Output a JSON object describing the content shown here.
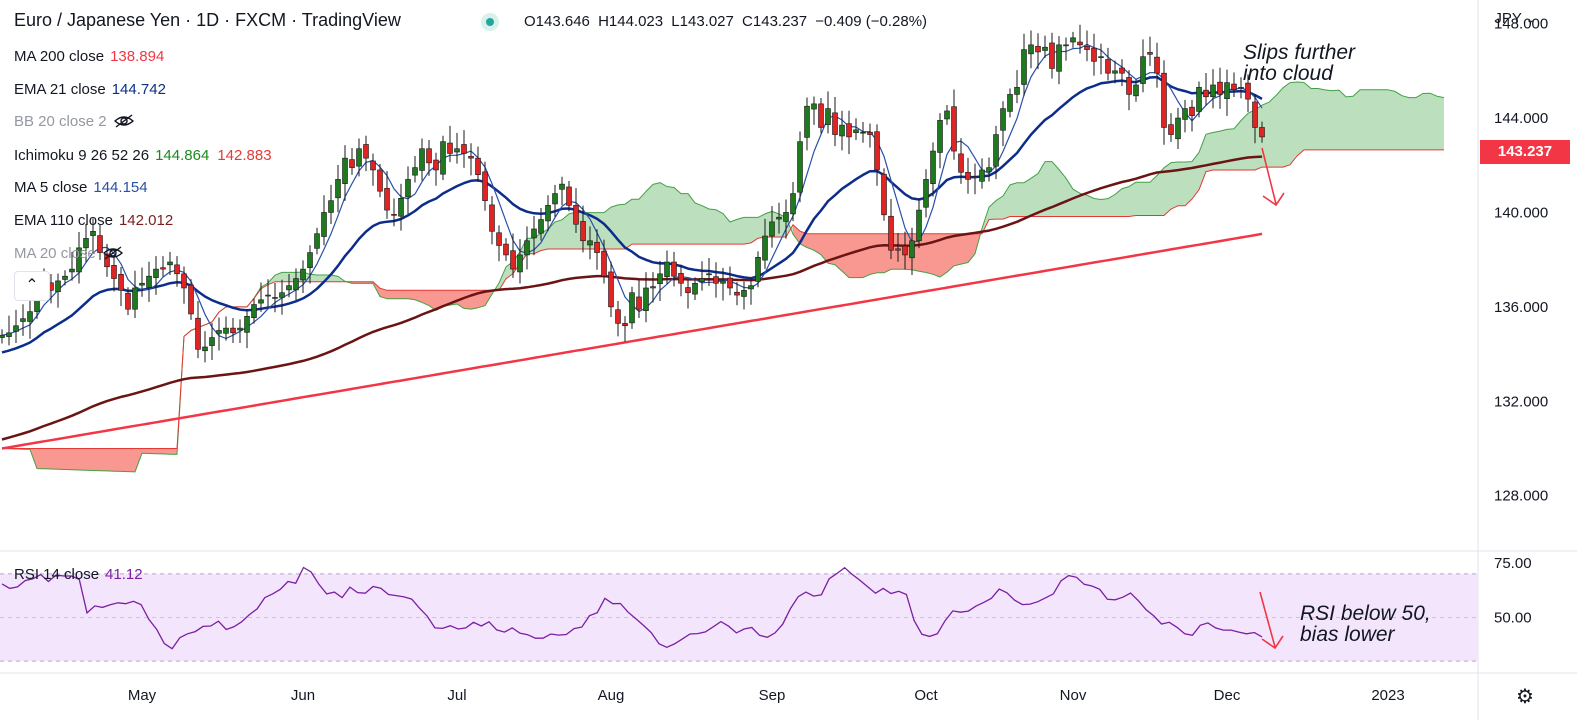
{
  "header": {
    "title": "Euro / Japanese Yen · 1D · FXCM · TradingView",
    "open": "O143.646",
    "high": "H144.023",
    "low": "L143.027",
    "close": "C143.237",
    "change": "−0.409 (−0.28%)"
  },
  "legend": [
    {
      "name": "MA 200 close",
      "value": "138.894",
      "color": "#f23645"
    },
    {
      "name": "EMA 21 close",
      "value": "144.742",
      "color": "#0d2d8a"
    },
    {
      "name": "BB 20 close 2",
      "value": "",
      "color": "#9598a1"
    },
    {
      "name": "Ichimoku 9 26 52 26",
      "value": "144.864",
      "value2": "142.883",
      "color": "#1b8a1b",
      "color2": "#e53935"
    },
    {
      "name": "MA 5 close",
      "value": "144.154",
      "color": "#2850a8"
    },
    {
      "name": "EMA 110 close",
      "value": "142.012",
      "color": "#7b1e1e"
    },
    {
      "name": "MA 20 close",
      "value": "",
      "color": "#9598a1"
    }
  ],
  "rsi_legend": {
    "name": "RSI 14 close",
    "value": "41.12",
    "color": "#7b1fa2"
  },
  "currency": "JPY",
  "last_price": "143.237",
  "annotations": {
    "top_line1": "Slips further",
    "top_line2": "into cloud",
    "rsi_line1": "RSI below 50,",
    "rsi_line2": "bias lower"
  },
  "colors": {
    "up": "#1f7a1f",
    "down": "#e02424",
    "cloud_green": "#a5d6a7",
    "cloud_red": "#f44336",
    "rsi": "#7b1fa2",
    "rsi_band": "#f3e5fc"
  },
  "chart_data": {
    "type": "candlestick",
    "symbol": "EURJPY",
    "price_axis": {
      "ticks": [
        "148.000",
        "144.000",
        "140.000",
        "136.000",
        "132.000",
        "128.000"
      ],
      "tick_values": [
        148,
        144,
        140,
        136,
        132,
        128
      ],
      "range": [
        125.7,
        149.0
      ]
    },
    "rsi_axis": {
      "ticks": [
        "75.00",
        "50.00"
      ],
      "tick_values": [
        75,
        50
      ],
      "range": [
        25,
        80
      ]
    },
    "x_labels": [
      "May",
      "Jun",
      "Jul",
      "Aug",
      "Sep",
      "Oct",
      "Nov",
      "Dec",
      "2023"
    ],
    "x_label_dates": [
      20,
      43,
      65,
      87,
      110,
      132,
      153,
      175,
      198
    ],
    "closes": [
      134.8,
      134.9,
      135.2,
      135.5,
      135.8,
      136.7,
      137.2,
      136.7,
      137.1,
      137.3,
      137.6,
      138.5,
      138.9,
      139.2,
      138.3,
      137.7,
      137.2,
      136.7,
      135.9,
      136.8,
      137.0,
      137.3,
      137.6,
      137.6,
      137.9,
      137.4,
      136.8,
      135.7,
      134.2,
      134.3,
      134.7,
      135.0,
      135.1,
      134.9,
      135.1,
      135.6,
      136.1,
      136.3,
      136.5,
      136.4,
      136.6,
      136.9,
      137.2,
      137.6,
      138.3,
      139.1,
      140.0,
      140.5,
      141.4,
      142.3,
      141.9,
      142.7,
      142.3,
      141.8,
      140.9,
      140.1,
      139.9,
      140.6,
      141.4,
      141.9,
      142.7,
      142.1,
      141.8,
      143.0,
      142.5,
      142.7,
      142.5,
      142.3,
      141.6,
      140.5,
      139.2,
      138.6,
      138.2,
      137.6,
      138.2,
      138.8,
      139.3,
      139.7,
      140.3,
      140.8,
      141.2,
      140.3,
      139.5,
      138.8,
      138.8,
      138.3,
      137.3,
      136.0,
      135.3,
      135.2,
      136.6,
      135.9,
      136.8,
      136.8,
      137.4,
      137.9,
      137.3,
      137.0,
      136.6,
      137.0,
      137.2,
      137.4,
      137.0,
      137.1,
      136.8,
      136.5,
      136.7,
      136.9,
      138.1,
      139.0,
      139.6,
      139.8,
      140.0,
      140.8,
      143.0,
      144.5,
      144.6,
      143.6,
      144.4,
      143.3,
      143.7,
      143.2,
      143.5,
      143.4,
      143.3,
      141.8,
      139.9,
      138.4,
      138.4,
      138.2,
      138.8,
      140.1,
      141.4,
      142.6,
      143.9,
      144.3,
      142.6,
      141.7,
      141.4,
      141.5,
      141.8,
      141.9,
      143.3,
      144.4,
      145.0,
      145.3,
      146.9,
      147.1,
      146.8,
      147.0,
      146.1,
      147.1,
      147.1,
      147.4,
      147.1,
      146.9,
      146.4,
      146.6,
      145.9,
      146.0,
      145.9,
      145.0,
      145.4,
      146.6,
      146.7,
      145.9,
      143.6,
      143.3,
      144.0,
      144.4,
      144.1,
      145.3,
      144.9,
      145.4,
      145.0,
      145.5,
      145.2,
      145.3,
      144.8,
      143.6,
      143.2
    ],
    "series_lines": [
      "MA 200",
      "EMA 110",
      "EMA 21",
      "MA 5",
      "Ichimoku Span A",
      "Ichimoku Span B"
    ],
    "rsi": [
      65.4,
      63.3,
      64.0,
      66.9,
      67.7,
      69.7,
      66.5,
      69.4,
      69.0,
      69.0,
      67.4,
      52.1,
      55.3,
      54.6,
      55.8,
      56.7,
      56.3,
      57.4,
      55.9,
      49.1,
      44.6,
      38.0,
      35.7,
      40.7,
      42.5,
      43.5,
      45.9,
      46.1,
      48.3,
      44.5,
      45.7,
      48.0,
      51.3,
      53.9,
      59.1,
      60.8,
      62.9,
      66.5,
      65.7,
      72.9,
      70.8,
      65.2,
      60.8,
      61.6,
      59.1,
      63.9,
      61.4,
      61.1,
      64.2,
      63.4,
      60.5,
      60.0,
      59.4,
      58.4,
      54.3,
      50.6,
      45.2,
      45.0,
      46.2,
      44.7,
      45.2,
      47.8,
      46.1,
      48.0,
      44.3,
      43.3,
      45.2,
      42.8,
      42.1,
      40.5,
      40.5,
      42.4,
      41.9,
      42.2,
      44.9,
      45.6,
      50.8,
      52.2,
      58.8,
      56.3,
      56.4,
      52.4,
      49.4,
      46.3,
      43.0,
      37.9,
      36.3,
      37.9,
      40.1,
      42.4,
      42.6,
      43.4,
      45.7,
      48.1,
      46.0,
      42.9,
      44.7,
      45.4,
      41.8,
      40.9,
      42.9,
      46.9,
      54.1,
      59.5,
      61.6,
      59.8,
      60.4,
      67.7,
      70.1,
      72.8,
      69.7,
      67.0,
      64.0,
      61.1,
      63.3,
      61.0,
      62.0,
      60.5,
      48.6,
      42.3,
      41.3,
      42.5,
      48.5,
      53.0,
      52.4,
      52.9,
      55.2,
      56.9,
      58.8,
      63.0,
      61.3,
      57.9,
      55.9,
      56.1,
      57.2,
      59.0,
      60.8,
      66.8,
      69.2,
      68.4,
      65.2,
      64.4,
      62.9,
      58.3,
      58.1,
      59.3,
      61.2,
      57.7,
      53.6,
      50.7,
      47.0,
      47.8,
      45.5,
      42.5,
      41.8,
      46.4,
      47.5,
      45.2,
      44.2,
      44.2,
      43.3,
      42.5,
      43.1,
      41.1
    ]
  }
}
